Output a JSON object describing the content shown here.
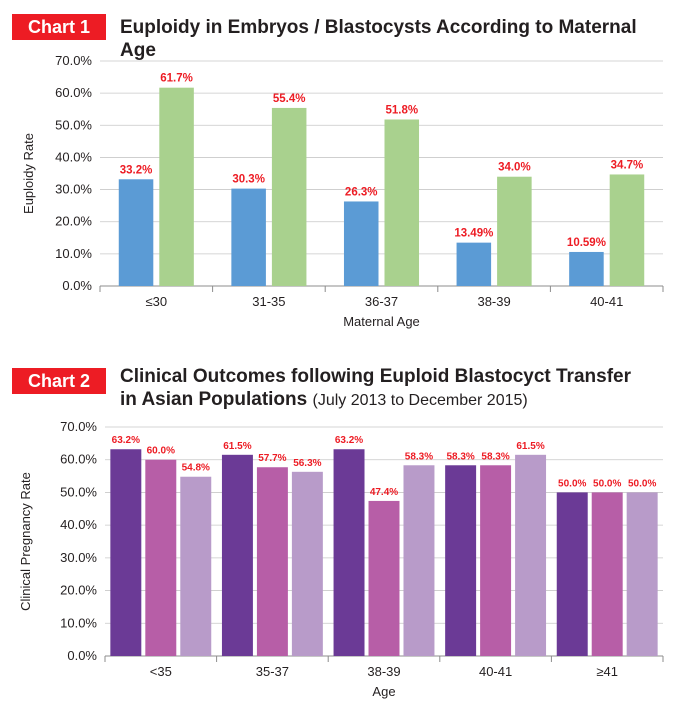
{
  "chart_data": [
    {
      "type": "bar",
      "badge": "Chart 1",
      "title": "Euploidy in Embryos / Blastocysts According to Maternal Age",
      "xlabel": "Maternal Age",
      "ylabel": "Euploidy Rate",
      "ylim": [
        0,
        70
      ],
      "yticks": [
        "0.0%",
        "10.0%",
        "20.0%",
        "30.0%",
        "40.0%",
        "50.0%",
        "60.0%",
        "70.0%"
      ],
      "grid": true,
      "categories": [
        "≤30",
        "31-35",
        "36-37",
        "38-39",
        "40-41"
      ],
      "series": [
        {
          "values": [
            33.2,
            30.3,
            26.3,
            13.49,
            10.59
          ],
          "labels": [
            "33.2%",
            "30.3%",
            "26.3%",
            "13.49%",
            "10.59%"
          ],
          "color": "#5b9bd5"
        },
        {
          "values": [
            61.7,
            55.4,
            51.8,
            34.0,
            34.7
          ],
          "labels": [
            "61.7%",
            "55.4%",
            "51.8%",
            "34.0%",
            "34.7%"
          ],
          "color": "#a9d18e"
        }
      ]
    },
    {
      "type": "bar",
      "badge": "Chart 2",
      "title_line1": "Clinical Outcomes following Euploid Blastocyct Transfer",
      "title_line2": "in Asian Populations",
      "title_note": "(July 2013 to December 2015)",
      "xlabel": "Age",
      "ylabel": "Clinical Pregnancy Rate",
      "ylim": [
        0,
        70
      ],
      "yticks": [
        "0.0%",
        "10.0%",
        "20.0%",
        "30.0%",
        "40.0%",
        "50.0%",
        "60.0%",
        "70.0%"
      ],
      "grid": true,
      "categories": [
        "<35",
        "35-37",
        "38-39",
        "40-41",
        "≥41"
      ],
      "series": [
        {
          "values": [
            63.2,
            61.5,
            63.2,
            58.3,
            50.0
          ],
          "labels": [
            "63.2%",
            "61.5%",
            "63.2%",
            "58.3%",
            "50.0%"
          ],
          "color": "#6b3a96"
        },
        {
          "values": [
            60.0,
            57.7,
            47.4,
            58.3,
            50.0
          ],
          "labels": [
            "60.0%",
            "57.7%",
            "47.4%",
            "58.3%",
            "50.0%"
          ],
          "color": "#b75ea7"
        },
        {
          "values": [
            54.8,
            56.3,
            58.3,
            61.5,
            50.0
          ],
          "labels": [
            "54.8%",
            "56.3%",
            "58.3%",
            "61.5%",
            "50.0%"
          ],
          "color": "#b89bc9"
        }
      ]
    }
  ]
}
